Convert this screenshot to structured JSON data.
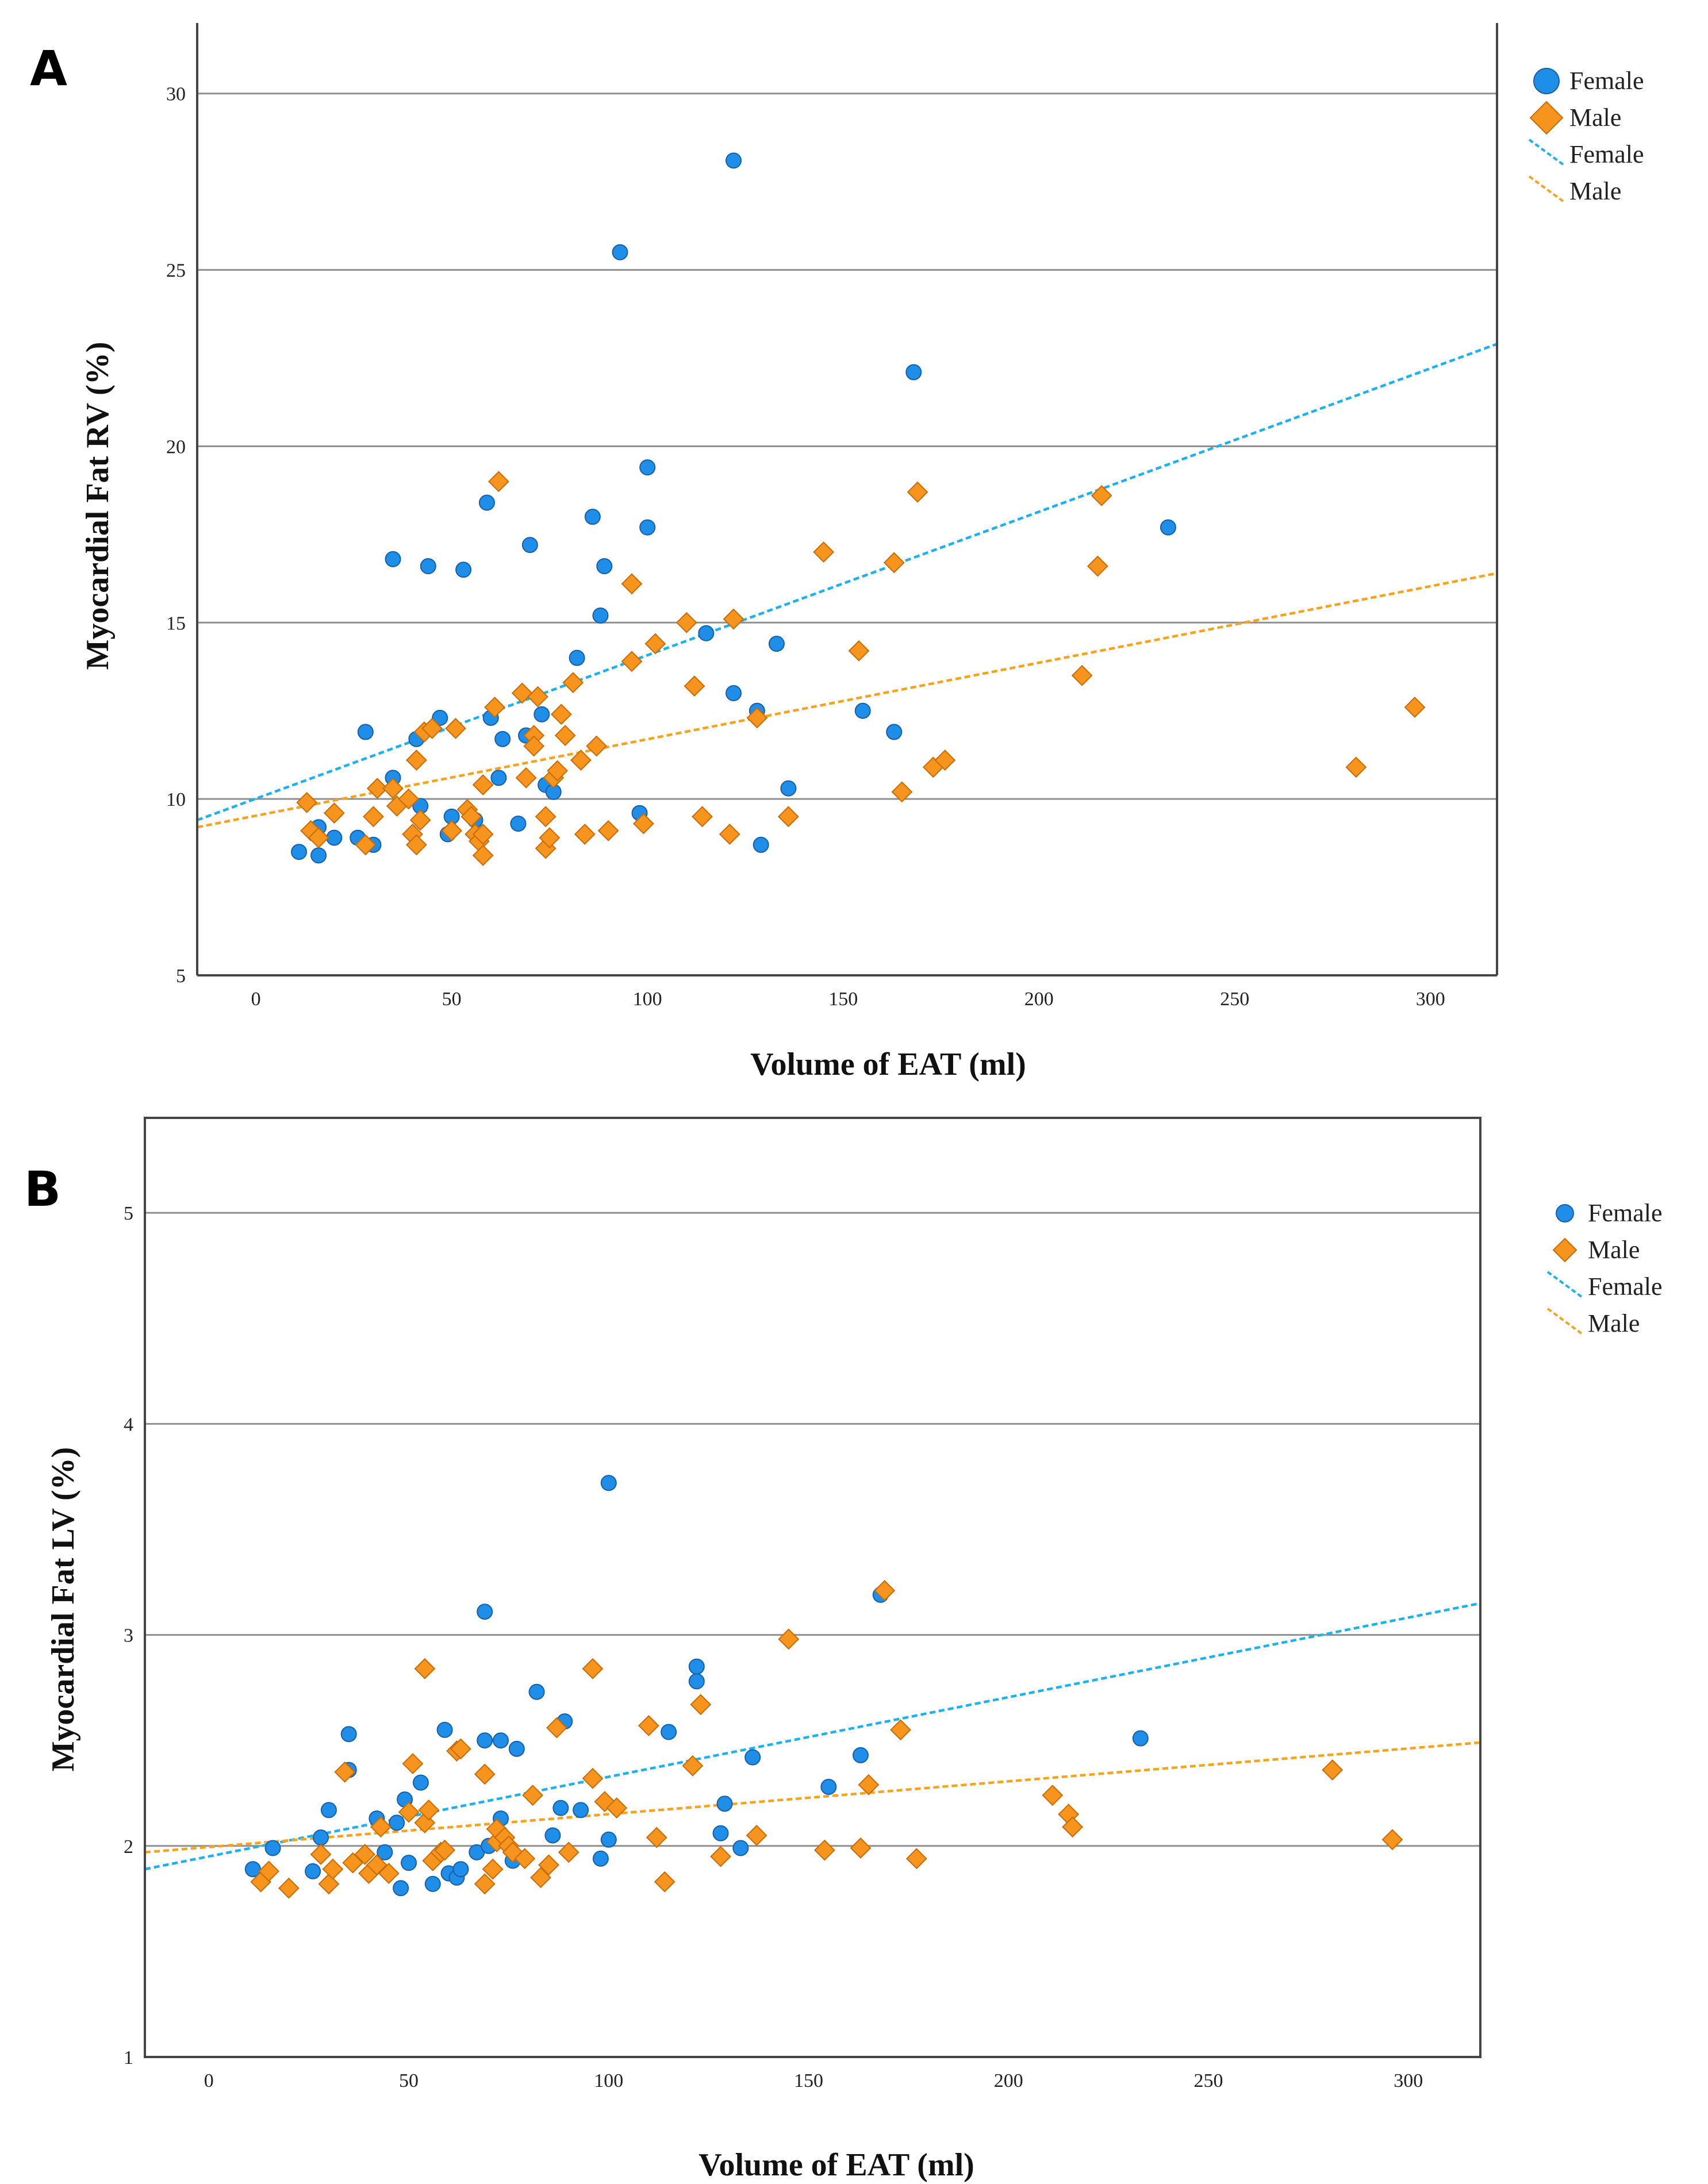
{
  "chart_data": [
    {
      "panel_label": "A",
      "type": "scatter",
      "xlabel": "Volume of EAT (ml)",
      "ylabel": "Myocardial Fat RV (%)",
      "xlim": [
        -15,
        317
      ],
      "ylim": [
        5,
        32
      ],
      "xticks": [
        0,
        50,
        100,
        150,
        200,
        250,
        300
      ],
      "yticks": [
        5,
        10,
        15,
        20,
        25,
        30
      ],
      "legend": [
        "Female",
        "Male",
        "Female",
        "Male"
      ],
      "series": [
        {
          "name": "Female",
          "marker": "circle",
          "color": "#1f8ee8",
          "points": [
            [
              11,
              8.5
            ],
            [
              16,
              9.2
            ],
            [
              16,
              8.4
            ],
            [
              20,
              8.9
            ],
            [
              26,
              8.9
            ],
            [
              28,
              11.9
            ],
            [
              30,
              8.7
            ],
            [
              35,
              10.6
            ],
            [
              35,
              16.8
            ],
            [
              41,
              11.7
            ],
            [
              42,
              9.8
            ],
            [
              44,
              16.6
            ],
            [
              47,
              12.3
            ],
            [
              49,
              9.0
            ],
            [
              50,
              9.5
            ],
            [
              53,
              16.5
            ],
            [
              56,
              9.4
            ],
            [
              59,
              18.4
            ],
            [
              60,
              12.3
            ],
            [
              62,
              10.6
            ],
            [
              63,
              11.7
            ],
            [
              67,
              9.3
            ],
            [
              69,
              11.8
            ],
            [
              70,
              17.2
            ],
            [
              73,
              12.4
            ],
            [
              74,
              10.4
            ],
            [
              76,
              10.2
            ],
            [
              82,
              14.0
            ],
            [
              86,
              18.0
            ],
            [
              88,
              15.2
            ],
            [
              89,
              16.6
            ],
            [
              98,
              9.6
            ],
            [
              100,
              19.4
            ],
            [
              100,
              17.7
            ],
            [
              115,
              14.7
            ],
            [
              122,
              13.0
            ],
            [
              122,
              28.1
            ],
            [
              128,
              12.5
            ],
            [
              129,
              8.7
            ],
            [
              133,
              14.4
            ],
            [
              136,
              10.3
            ],
            [
              155,
              12.5
            ],
            [
              163,
              11.9
            ],
            [
              168,
              22.1
            ],
            [
              233,
              17.7
            ],
            [
              93,
              25.5
            ]
          ]
        },
        {
          "name": "Male",
          "marker": "diamond",
          "color": "#f7941d",
          "points": [
            [
              13,
              9.9
            ],
            [
              14,
              9.1
            ],
            [
              16,
              8.9
            ],
            [
              20,
              9.6
            ],
            [
              28,
              8.7
            ],
            [
              30,
              9.5
            ],
            [
              31,
              10.3
            ],
            [
              35,
              10.3
            ],
            [
              36,
              9.8
            ],
            [
              39,
              10.0
            ],
            [
              40,
              9.0
            ],
            [
              41,
              8.7
            ],
            [
              41,
              11.1
            ],
            [
              42,
              9.4
            ],
            [
              43,
              11.9
            ],
            [
              45,
              12.0
            ],
            [
              50,
              9.1
            ],
            [
              51,
              12.0
            ],
            [
              54,
              9.7
            ],
            [
              55,
              9.5
            ],
            [
              56,
              9.0
            ],
            [
              57,
              8.8
            ],
            [
              58,
              10.4
            ],
            [
              58,
              8.4
            ],
            [
              58,
              9.0
            ],
            [
              61,
              12.6
            ],
            [
              62,
              19.0
            ],
            [
              68,
              13.0
            ],
            [
              69,
              10.6
            ],
            [
              71,
              11.8
            ],
            [
              71,
              11.5
            ],
            [
              72,
              12.9
            ],
            [
              74,
              9.5
            ],
            [
              74,
              8.6
            ],
            [
              75,
              8.9
            ],
            [
              76,
              10.6
            ],
            [
              77,
              10.8
            ],
            [
              78,
              12.4
            ],
            [
              79,
              11.8
            ],
            [
              81,
              13.3
            ],
            [
              83,
              11.1
            ],
            [
              84,
              9.0
            ],
            [
              87,
              11.5
            ],
            [
              90,
              9.1
            ],
            [
              96,
              16.1
            ],
            [
              96,
              13.9
            ],
            [
              99,
              9.3
            ],
            [
              102,
              14.4
            ],
            [
              110,
              15.0
            ],
            [
              112,
              13.2
            ],
            [
              114,
              9.5
            ],
            [
              121,
              9.0
            ],
            [
              122,
              15.1
            ],
            [
              128,
              12.3
            ],
            [
              136,
              9.5
            ],
            [
              145,
              17.0
            ],
            [
              154,
              14.2
            ],
            [
              163,
              16.7
            ],
            [
              165,
              10.2
            ],
            [
              169,
              18.7
            ],
            [
              173,
              10.9
            ],
            [
              176,
              11.1
            ],
            [
              211,
              13.5
            ],
            [
              215,
              16.6
            ],
            [
              216,
              18.6
            ],
            [
              281,
              10.9
            ],
            [
              296,
              12.6
            ]
          ]
        }
      ],
      "fit_lines": [
        {
          "name": "Female",
          "color": "#1ab2f0",
          "x": [
            -15,
            317
          ],
          "y": [
            9.4,
            22.9
          ]
        },
        {
          "name": "Male",
          "color": "#f8a31b",
          "x": [
            -15,
            317
          ],
          "y": [
            9.2,
            16.4
          ]
        }
      ]
    },
    {
      "panel_label": "B",
      "type": "scatter",
      "xlabel": "Volume of EAT (ml)",
      "ylabel": "Myocardial Fat LV (%)",
      "xlim": [
        -16,
        318
      ],
      "ylim": [
        1,
        5.45
      ],
      "xticks": [
        0,
        50,
        100,
        150,
        200,
        250,
        300
      ],
      "yticks": [
        1,
        2,
        3,
        4,
        5
      ],
      "legend": [
        "Female",
        "Male",
        "Female",
        "Male"
      ],
      "series": [
        {
          "name": "Female",
          "marker": "circle",
          "color": "#1f8ee8",
          "points": [
            [
              11,
              1.89
            ],
            [
              16,
              1.99
            ],
            [
              26,
              1.88
            ],
            [
              28,
              2.04
            ],
            [
              30,
              2.17
            ],
            [
              35,
              2.53
            ],
            [
              35,
              2.36
            ],
            [
              42,
              2.13
            ],
            [
              44,
              1.97
            ],
            [
              47,
              2.11
            ],
            [
              48,
              1.8
            ],
            [
              49,
              2.22
            ],
            [
              50,
              1.92
            ],
            [
              53,
              2.3
            ],
            [
              56,
              1.82
            ],
            [
              59,
              2.55
            ],
            [
              60,
              1.87
            ],
            [
              62,
              1.85
            ],
            [
              63,
              1.89
            ],
            [
              67,
              1.97
            ],
            [
              69,
              2.5
            ],
            [
              69,
              3.11
            ],
            [
              70,
              2.0
            ],
            [
              73,
              2.5
            ],
            [
              73,
              2.13
            ],
            [
              76,
              1.93
            ],
            [
              77,
              2.46
            ],
            [
              82,
              2.73
            ],
            [
              86,
              2.05
            ],
            [
              88,
              2.18
            ],
            [
              89,
              2.59
            ],
            [
              93,
              2.17
            ],
            [
              98,
              1.94
            ],
            [
              100,
              3.72
            ],
            [
              100,
              2.03
            ],
            [
              115,
              2.54
            ],
            [
              122,
              2.85
            ],
            [
              122,
              2.78
            ],
            [
              128,
              2.06
            ],
            [
              129,
              2.2
            ],
            [
              133,
              1.99
            ],
            [
              136,
              2.42
            ],
            [
              155,
              2.28
            ],
            [
              163,
              2.43
            ],
            [
              168,
              3.19
            ],
            [
              233,
              2.51
            ]
          ]
        },
        {
          "name": "Male",
          "marker": "diamond",
          "color": "#f7941d",
          "points": [
            [
              13,
              1.83
            ],
            [
              15,
              1.88
            ],
            [
              20,
              1.8
            ],
            [
              28,
              1.96
            ],
            [
              30,
              1.82
            ],
            [
              31,
              1.89
            ],
            [
              34,
              2.35
            ],
            [
              36,
              1.92
            ],
            [
              39,
              1.96
            ],
            [
              40,
              1.87
            ],
            [
              42,
              1.91
            ],
            [
              43,
              2.09
            ],
            [
              45,
              1.87
            ],
            [
              50,
              2.16
            ],
            [
              51,
              2.39
            ],
            [
              54,
              2.84
            ],
            [
              54,
              2.11
            ],
            [
              55,
              2.17
            ],
            [
              56,
              1.93
            ],
            [
              58,
              1.97
            ],
            [
              59,
              1.98
            ],
            [
              62,
              2.45
            ],
            [
              63,
              2.46
            ],
            [
              69,
              1.82
            ],
            [
              69,
              2.34
            ],
            [
              71,
              1.89
            ],
            [
              72,
              2.02
            ],
            [
              72,
              2.08
            ],
            [
              74,
              2.04
            ],
            [
              75,
              2.0
            ],
            [
              76,
              1.97
            ],
            [
              79,
              1.94
            ],
            [
              81,
              2.24
            ],
            [
              83,
              1.85
            ],
            [
              85,
              1.91
            ],
            [
              87,
              2.56
            ],
            [
              90,
              1.97
            ],
            [
              96,
              2.84
            ],
            [
              96,
              2.32
            ],
            [
              99,
              2.21
            ],
            [
              102,
              2.18
            ],
            [
              110,
              2.57
            ],
            [
              112,
              2.04
            ],
            [
              114,
              1.83
            ],
            [
              121,
              2.38
            ],
            [
              123,
              2.67
            ],
            [
              128,
              1.95
            ],
            [
              137,
              2.05
            ],
            [
              145,
              2.98
            ],
            [
              154,
              1.98
            ],
            [
              163,
              1.99
            ],
            [
              165,
              2.29
            ],
            [
              169,
              3.21
            ],
            [
              173,
              2.55
            ],
            [
              177,
              1.94
            ],
            [
              211,
              2.24
            ],
            [
              215,
              2.15
            ],
            [
              216,
              2.09
            ],
            [
              281,
              2.36
            ],
            [
              296,
              2.03
            ]
          ]
        }
      ],
      "fit_lines": [
        {
          "name": "Female",
          "color": "#1ab2f0",
          "x": [
            -16,
            318
          ],
          "y": [
            1.89,
            3.15
          ]
        },
        {
          "name": "Male",
          "color": "#f8a31b",
          "x": [
            -16,
            318
          ],
          "y": [
            1.97,
            2.49
          ]
        }
      ]
    }
  ]
}
